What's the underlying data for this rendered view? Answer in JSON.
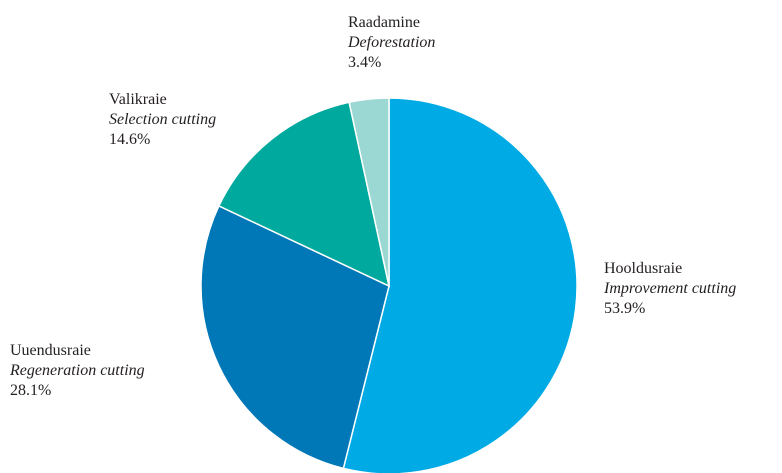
{
  "chart_data": {
    "type": "pie",
    "title": "",
    "slices": [
      {
        "label_et": "Hooldusraie",
        "label_en": "Improvement cutting",
        "value": 53.9,
        "value_label": "53.9%",
        "color": "#00aae4"
      },
      {
        "label_et": "Uuendusraie",
        "label_en": "Regeneration cutting",
        "value": 28.1,
        "value_label": "28.1%",
        "color": "#0077b6"
      },
      {
        "label_et": "Valikraie",
        "label_en": "Selection cutting",
        "value": 14.6,
        "value_label": "14.6%",
        "color": "#00a99d"
      },
      {
        "label_et": "Raadamine",
        "label_en": "Deforestation",
        "value": 3.4,
        "value_label": "3.4%",
        "color": "#9bd8d4"
      }
    ]
  }
}
